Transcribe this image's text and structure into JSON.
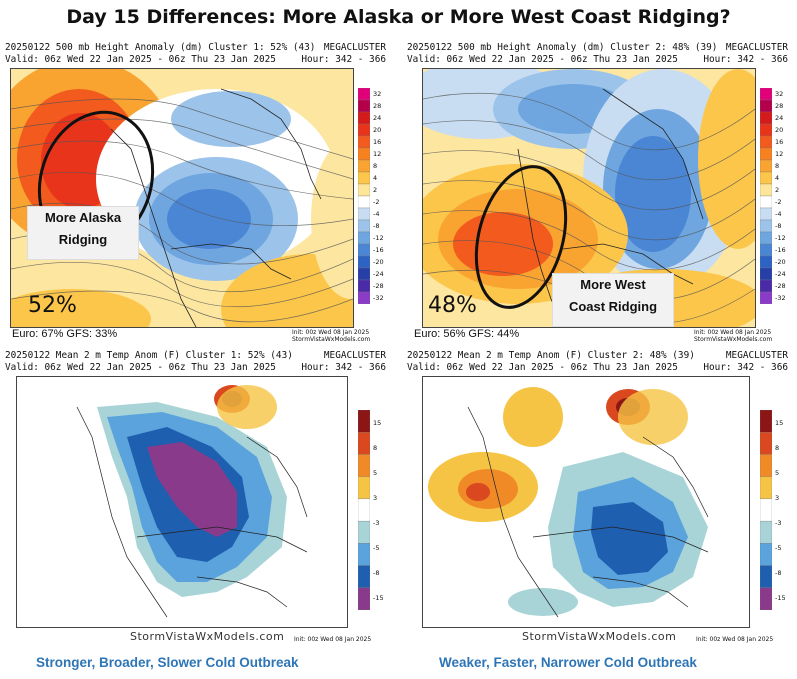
{
  "title": "Day 15 Differences: More Alaska or More West Coast Ridging?",
  "panels": {
    "top_left": {
      "header_line1": "20250122 500 mb Height Anomaly (dm) Cluster 1: 52% (43)",
      "header_line2": "Valid: 06z Wed 22 Jan 2025 - 06z Thu 23 Jan 2025",
      "brand": "MEGACLUSTER",
      "hour": "Hour: 342 - 366",
      "percent": "52%",
      "ensemble": "Euro: 67% GFS: 33%",
      "init": "Init: 00z Wed 08 Jan 2025",
      "site": "StormVistaWxModels.com",
      "callout": [
        "More Alaska",
        "Ridging"
      ]
    },
    "top_right": {
      "header_line1": "20250122 500 mb Height Anomaly (dm) Cluster 2: 48% (39)",
      "header_line2": "Valid: 06z Wed 22 Jan 2025 - 06z Thu 23 Jan 2025",
      "brand": "MEGACLUSTER",
      "hour": "Hour: 342 - 366",
      "percent": "48%",
      "ensemble": "Euro: 56% GFS: 44%",
      "init": "Init: 00z Wed 08 Jan 2025",
      "site": "StormVistaWxModels.com",
      "callout": [
        "More West",
        "Coast Ridging"
      ]
    },
    "bottom_left": {
      "header_line1": "20250122 Mean 2 m Temp Anom (F) Cluster 1: 52% (43)",
      "header_line2": "Valid: 06z Wed 22 Jan 2025 - 06z Thu 23 Jan 2025",
      "brand": "MEGACLUSTER",
      "hour": "Hour: 342 - 366",
      "site": "StormVistaWxModels.com",
      "init": "Init: 00z Wed 08 Jan 2025"
    },
    "bottom_right": {
      "header_line1": "20250122 Mean 2 m Temp Anom (F) Cluster 2: 48% (39)",
      "header_line2": "Valid: 06z Wed 22 Jan 2025 - 06z Thu 23 Jan 2025",
      "brand": "MEGACLUSTER",
      "hour": "Hour: 342 - 366",
      "site": "StormVistaWxModels.com",
      "init": "Init: 00z Wed 08 Jan 2025"
    }
  },
  "height_scale": {
    "labels": [
      "32",
      "28",
      "24",
      "20",
      "16",
      "12",
      "8",
      "4",
      "2",
      "-2",
      "-4",
      "-8",
      "-12",
      "-16",
      "-20",
      "-24",
      "-28",
      "-32"
    ],
    "colors": [
      "#e2007a",
      "#b4004a",
      "#d41a1a",
      "#e8341b",
      "#f25a1e",
      "#f7801f",
      "#f9a330",
      "#fbc64a",
      "#fde69a",
      "#ffffff",
      "#c8ddf2",
      "#9cc3ea",
      "#6fa6e0",
      "#4a86d4",
      "#2d63c4",
      "#2740a8",
      "#4b2aa8",
      "#8a3cc8"
    ]
  },
  "temp_scale": {
    "labels": [
      "15",
      "8",
      "5",
      "3",
      "-3",
      "-5",
      "-8",
      "-15"
    ],
    "colors": [
      "#8c1616",
      "#d9481e",
      "#f08a27",
      "#f6c445",
      "#ffffff",
      "#a8d4d8",
      "#5ba3dc",
      "#1f5fb0",
      "#8a3a8a"
    ]
  },
  "captions": {
    "left": "Stronger, Broader, Slower Cold Outbreak",
    "right": "Weaker, Faster, Narrower Cold Outbreak"
  },
  "colors": {
    "caption": "#2e75b6"
  }
}
